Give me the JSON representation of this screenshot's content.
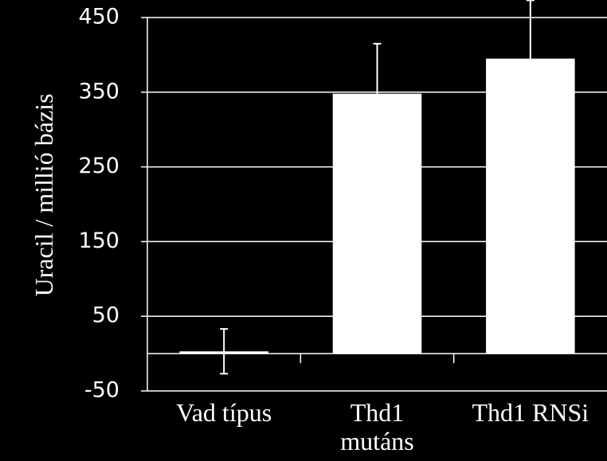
{
  "chart_data": {
    "type": "bar",
    "y_label": "Uracil / millió bázis",
    "categories": [
      "Vad típus",
      "Thd1 mutáns",
      "Thd1 RNSi"
    ],
    "values": [
      3,
      348,
      395
    ],
    "errors": [
      30,
      67,
      78
    ],
    "color": "#ffffff",
    "ylim": [
      -50,
      450
    ],
    "yticks": [
      -50,
      50,
      150,
      250,
      350,
      450
    ],
    "grid": true
  }
}
